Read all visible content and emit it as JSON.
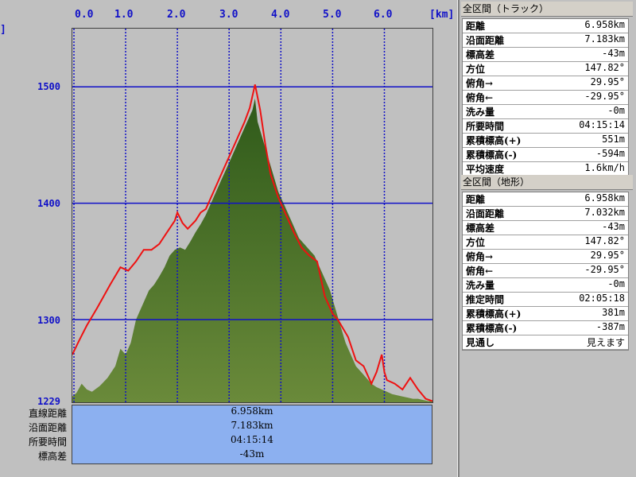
{
  "chart": {
    "x_ticks": [
      "0.0",
      "1.0",
      "2.0",
      "3.0",
      "4.0",
      "5.0",
      "6.0"
    ],
    "x_unit": "[km]",
    "y_ticks": [
      "1500",
      "1400",
      "1300",
      "1229"
    ],
    "y_axis_fragment": "]"
  },
  "chart_data": {
    "type": "area",
    "xlabel": "[km]",
    "ylabel": "",
    "xlim": [
      -0.03,
      6.93
    ],
    "ylim": [
      1229,
      1550
    ],
    "grid": true,
    "series": [
      {
        "name": "",
        "color": "#ee1111",
        "style": "line",
        "x": [
          -0.03,
          0.1,
          0.25,
          0.45,
          0.7,
          0.9,
          1.05,
          1.2,
          1.35,
          1.5,
          1.65,
          1.8,
          1.95,
          2.0,
          2.1,
          2.2,
          2.35,
          2.45,
          2.55,
          2.7,
          2.85,
          3.0,
          3.15,
          3.3,
          3.4,
          3.45,
          3.5,
          3.6,
          3.7,
          3.8,
          3.95,
          4.1,
          4.25,
          4.4,
          4.55,
          4.7,
          4.85,
          5.0,
          5.1,
          5.3,
          5.45,
          5.6,
          5.75,
          5.85,
          5.95,
          6.0,
          6.05,
          6.2,
          6.35,
          6.5,
          6.65,
          6.8,
          6.93
        ],
        "y": [
          1270,
          1282,
          1295,
          1310,
          1330,
          1345,
          1342,
          1350,
          1360,
          1360,
          1365,
          1375,
          1385,
          1392,
          1383,
          1378,
          1385,
          1392,
          1395,
          1410,
          1425,
          1440,
          1455,
          1470,
          1482,
          1492,
          1502,
          1480,
          1450,
          1425,
          1405,
          1390,
          1375,
          1362,
          1355,
          1350,
          1320,
          1305,
          1300,
          1285,
          1265,
          1260,
          1245,
          1255,
          1270,
          1255,
          1248,
          1245,
          1240,
          1250,
          1240,
          1232,
          1230
        ]
      },
      {
        "name": "",
        "color": "#3a6e20",
        "style": "area",
        "x": [
          -0.03,
          0.05,
          0.15,
          0.25,
          0.35,
          0.5,
          0.65,
          0.8,
          0.9,
          1.0,
          1.1,
          1.2,
          1.35,
          1.45,
          1.55,
          1.65,
          1.75,
          1.85,
          1.95,
          2.05,
          2.15,
          2.25,
          2.35,
          2.45,
          2.55,
          2.65,
          2.75,
          2.85,
          2.95,
          3.05,
          3.15,
          3.25,
          3.35,
          3.45,
          3.5,
          3.55,
          3.65,
          3.75,
          3.85,
          3.95,
          4.05,
          4.15,
          4.25,
          4.35,
          4.45,
          4.55,
          4.65,
          4.75,
          4.85,
          4.95,
          5.05,
          5.15,
          5.25,
          5.35,
          5.45,
          5.55,
          5.65,
          5.75,
          5.85,
          5.95,
          6.05,
          6.15,
          6.25,
          6.35,
          6.45,
          6.55,
          6.65,
          6.75,
          6.85,
          6.93
        ],
        "y": [
          1234,
          1237,
          1245,
          1240,
          1238,
          1243,
          1250,
          1260,
          1275,
          1270,
          1280,
          1300,
          1315,
          1325,
          1330,
          1337,
          1345,
          1355,
          1360,
          1362,
          1360,
          1367,
          1375,
          1382,
          1390,
          1400,
          1410,
          1420,
          1430,
          1440,
          1450,
          1460,
          1470,
          1480,
          1490,
          1470,
          1455,
          1440,
          1425,
          1410,
          1400,
          1390,
          1380,
          1370,
          1365,
          1360,
          1355,
          1345,
          1335,
          1325,
          1310,
          1295,
          1280,
          1270,
          1260,
          1255,
          1250,
          1245,
          1242,
          1240,
          1238,
          1236,
          1235,
          1234,
          1233,
          1232,
          1232,
          1231,
          1230,
          1230
        ]
      }
    ]
  },
  "summary": {
    "labels": [
      "直線距離",
      "沿面距離",
      "所要時間",
      "標高差"
    ],
    "values": [
      "6.958km",
      "7.183km",
      "04:15:14",
      "-43m"
    ]
  },
  "track_panel": {
    "title": "全区間（トラック）",
    "rows": [
      {
        "k": "距離",
        "v": "6.958km"
      },
      {
        "k": "沿面距離",
        "v": "7.183km"
      },
      {
        "k": "標高差",
        "v": "-43m"
      },
      {
        "k": "方位",
        "v": "147.82°"
      },
      {
        "k": "俯角→",
        "v": "29.95°"
      },
      {
        "k": "俯角←",
        "v": "-29.95°"
      },
      {
        "k": "洗み量",
        "v": "-0m"
      },
      {
        "k": "所要時間",
        "v": "04:15:14"
      },
      {
        "k": "累積標高(+)",
        "v": "551m"
      },
      {
        "k": "累積標高(-)",
        "v": "-594m"
      },
      {
        "k": "平均速度",
        "v": "1.6km/h"
      }
    ]
  },
  "terrain_panel": {
    "title": "全区間（地形）",
    "rows": [
      {
        "k": "距離",
        "v": "6.958km"
      },
      {
        "k": "沿面距離",
        "v": "7.032km"
      },
      {
        "k": "標高差",
        "v": "-43m"
      },
      {
        "k": "方位",
        "v": "147.82°"
      },
      {
        "k": "俯角→",
        "v": "29.95°"
      },
      {
        "k": "俯角←",
        "v": "-29.95°"
      },
      {
        "k": "洗み量",
        "v": "-0m"
      },
      {
        "k": "推定時間",
        "v": "02:05:18"
      },
      {
        "k": "累積標高(+)",
        "v": "381m"
      },
      {
        "k": "累積標高(-)",
        "v": "-387m"
      },
      {
        "k": "見通し",
        "v": "見えます"
      }
    ]
  }
}
